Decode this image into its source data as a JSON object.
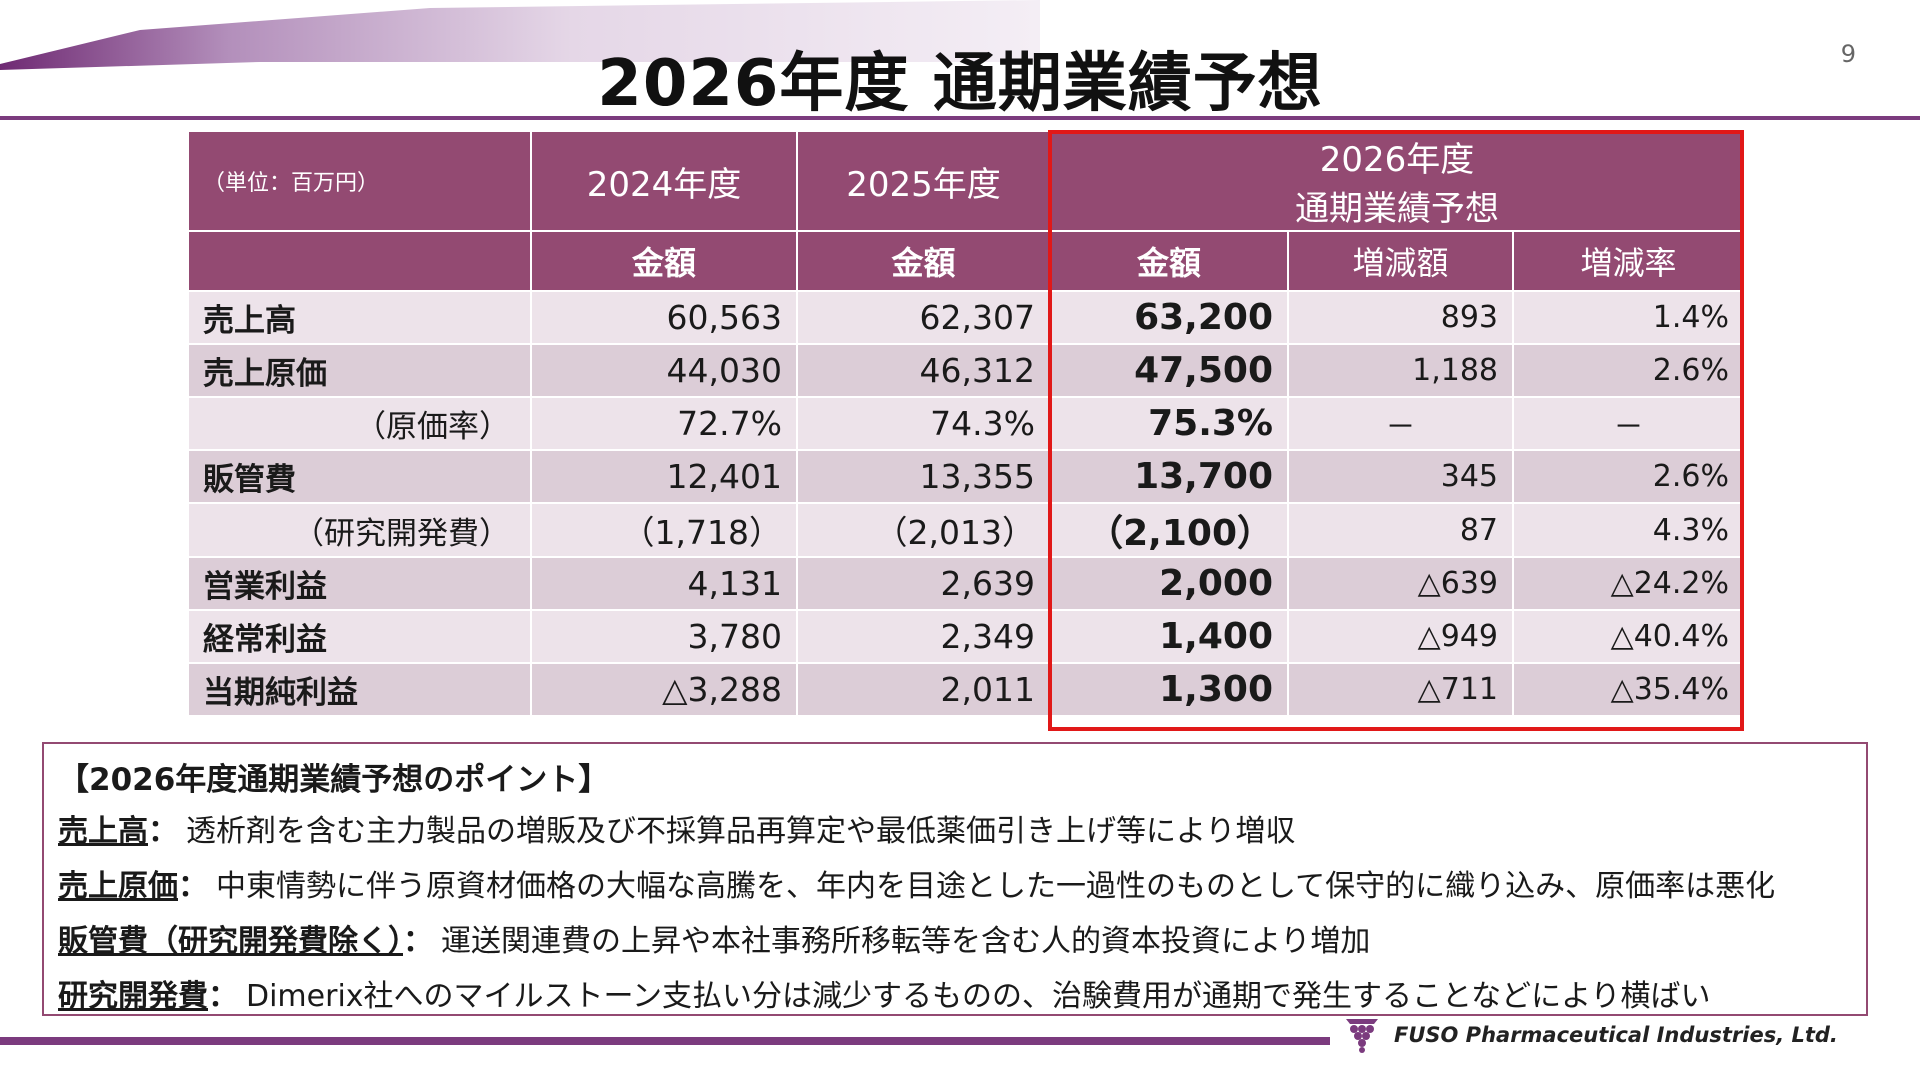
{
  "page": {
    "title": "2026年度 通期業績予想",
    "number": "9"
  },
  "table": {
    "unit": "（単位：百万円）",
    "years": [
      "2024年度",
      "2025年度"
    ],
    "forecast_line1": "2026年度",
    "forecast_line2": "通期業績予想",
    "sub_headers": [
      "金額",
      "金額",
      "金額",
      "増減額",
      "増減率"
    ],
    "rows": [
      {
        "label": "売上高",
        "fy2024": "60,563",
        "fy2025": "62,307",
        "fy2026": "63,200",
        "change": "893",
        "rate": "1.4%"
      },
      {
        "label": "売上原価",
        "fy2024": "44,030",
        "fy2025": "46,312",
        "fy2026": "47,500",
        "change": "1,188",
        "rate": "2.6%"
      },
      {
        "label": "（原価率）",
        "fy2024": "72.7%",
        "fy2025": "74.3%",
        "fy2026": "75.3%",
        "change": "－",
        "rate": "－"
      },
      {
        "label": "販管費",
        "fy2024": "12,401",
        "fy2025": "13,355",
        "fy2026": "13,700",
        "change": "345",
        "rate": "2.6%"
      },
      {
        "label": "（研究開発費）",
        "fy2024": "（1,718）",
        "fy2025": "（2,013）",
        "fy2026": "（2,100）",
        "change": "87",
        "rate": "4.3%"
      },
      {
        "label": "営業利益",
        "fy2024": "4,131",
        "fy2025": "2,639",
        "fy2026": "2,000",
        "change": "△639",
        "rate": "△24.2%"
      },
      {
        "label": "経常利益",
        "fy2024": "3,780",
        "fy2025": "2,349",
        "fy2026": "1,400",
        "change": "△949",
        "rate": "△40.4%"
      },
      {
        "label": "当期純利益",
        "fy2024": "△3,288",
        "fy2025": "2,011",
        "fy2026": "1,300",
        "change": "△711",
        "rate": "△35.4%"
      }
    ]
  },
  "points": {
    "title": "【2026年度通期業績予想のポイント】",
    "items": [
      {
        "term": "売上高",
        "sep": "：",
        "text": "透析剤を含む主力製品の増販及び不採算品再算定や最低薬価引き上げ等により増収"
      },
      {
        "term": "売上原価",
        "sep": "：",
        "text": "中東情勢に伴う原資材価格の大幅な高騰を、年内を目途とした一過性のものとして保守的に織り込み、原価率は悪化"
      },
      {
        "term": "販管費（研究開発費除く）",
        "sep": "：",
        "text": "運送関連費の上昇や本社事務所移転等を含む人的資本投資により増加"
      },
      {
        "term": "研究開発費",
        "sep": "：",
        "text": "Dimerix社へのマイルストーン支払い分は減少するものの、治験費用が通期で発生することなどにより横ばい"
      }
    ]
  },
  "footer": {
    "company": "FUSO Pharmaceutical Industries, Ltd.",
    "logo_icon": "grape-cluster-icon"
  },
  "colors": {
    "brand_purple": "#934a72",
    "rule_purple": "#7b3b7e",
    "highlight_red": "#e11818",
    "row_light": "#ede3ea",
    "row_dark": "#dccdd7"
  }
}
